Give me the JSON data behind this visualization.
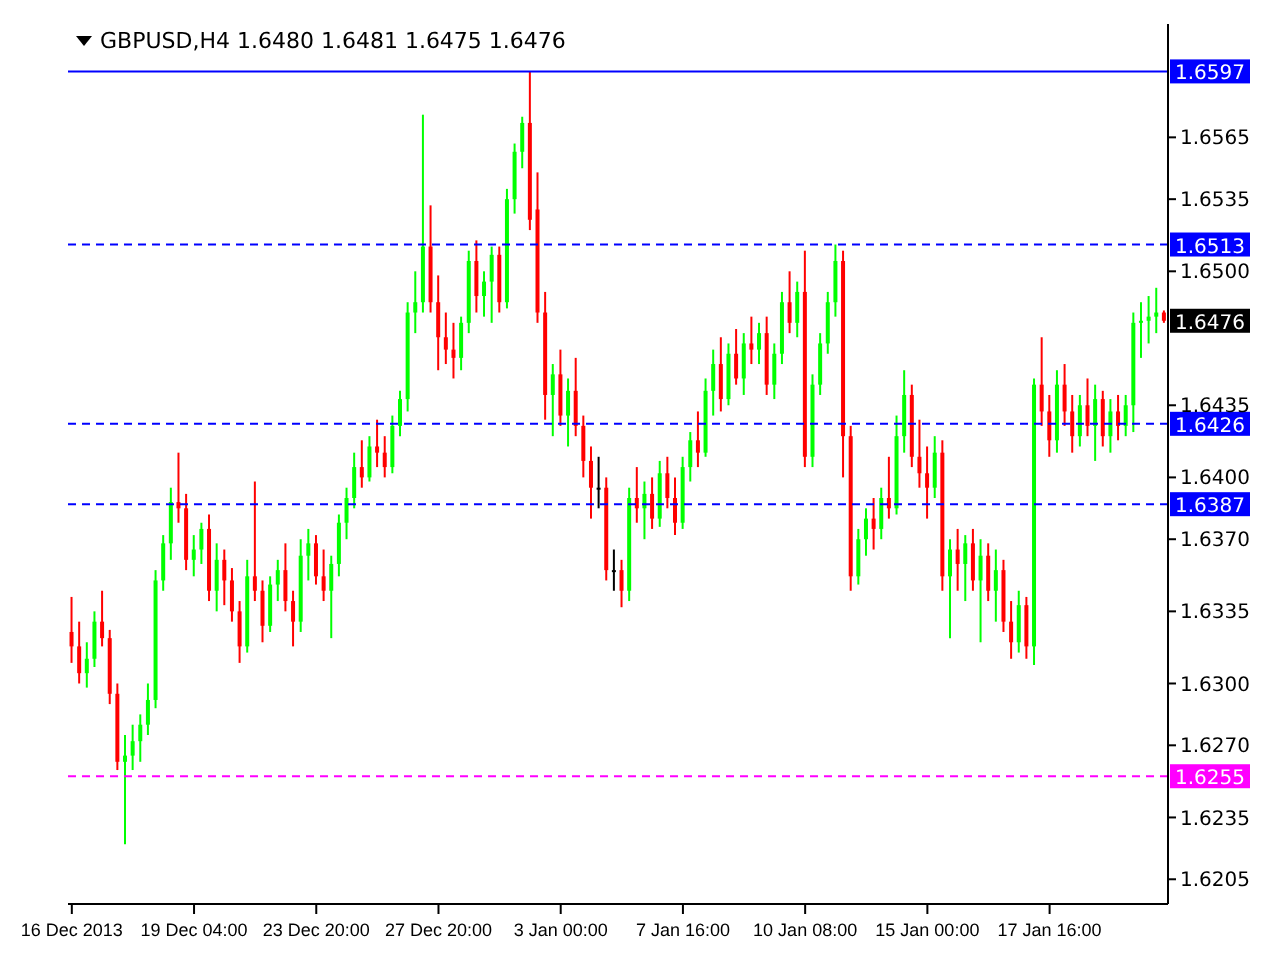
{
  "chart_data": {
    "type": "candlestick",
    "title": "GBPUSD,H4 1.6480 1.6481 1.6475 1.6476",
    "categories": [
      "16 Dec 2013",
      null,
      null,
      null,
      null,
      null,
      null,
      null,
      null,
      null,
      null,
      null,
      null,
      null,
      null,
      null,
      "19 Dec 04:00",
      null,
      null,
      null,
      null,
      null,
      null,
      null,
      null,
      null,
      null,
      null,
      null,
      null,
      null,
      null,
      "23 Dec 20:00",
      null,
      null,
      null,
      null,
      null,
      null,
      null,
      null,
      null,
      null,
      null,
      null,
      null,
      null,
      null,
      "27 Dec 20:00",
      null,
      null,
      null,
      null,
      null,
      null,
      null,
      null,
      null,
      null,
      null,
      null,
      null,
      null,
      null,
      "3 Jan 00:00",
      null,
      null,
      null,
      null,
      null,
      null,
      null,
      null,
      null,
      null,
      null,
      null,
      null,
      null,
      null,
      "7 Jan 16:00",
      null,
      null,
      null,
      null,
      null,
      null,
      null,
      null,
      null,
      null,
      null,
      null,
      null,
      null,
      null,
      "10 Jan 08:00",
      null,
      null,
      null,
      null,
      null,
      null,
      null,
      null,
      null,
      null,
      null,
      null,
      null,
      null,
      null,
      "15 Jan 00:00",
      null,
      null,
      null,
      null,
      null,
      null,
      null,
      null,
      null,
      null,
      null,
      null,
      null,
      null,
      null,
      "17 Jan 16:00",
      null,
      null,
      null,
      null,
      null,
      null,
      null,
      null,
      null,
      null,
      null,
      null,
      null,
      null,
      null
    ],
    "ohlc": [
      [
        1.6325,
        1.6342,
        1.631,
        1.6318
      ],
      [
        1.6318,
        1.633,
        1.63,
        1.6305
      ],
      [
        1.6305,
        1.632,
        1.6298,
        1.6312
      ],
      [
        1.6312,
        1.6335,
        1.6308,
        1.633
      ],
      [
        1.633,
        1.6345,
        1.6318,
        1.6322
      ],
      [
        1.6322,
        1.6326,
        1.629,
        1.6295
      ],
      [
        1.6295,
        1.63,
        1.6258,
        1.6262
      ],
      [
        1.6262,
        1.6275,
        1.6222,
        1.6265
      ],
      [
        1.6265,
        1.628,
        1.6258,
        1.6272
      ],
      [
        1.6272,
        1.6285,
        1.6262,
        1.628
      ],
      [
        1.628,
        1.63,
        1.6275,
        1.6292
      ],
      [
        1.6292,
        1.6355,
        1.6288,
        1.635
      ],
      [
        1.635,
        1.6372,
        1.6345,
        1.6368
      ],
      [
        1.6368,
        1.6395,
        1.636,
        1.6388
      ],
      [
        1.6388,
        1.6412,
        1.6378,
        1.6385
      ],
      [
        1.6385,
        1.6392,
        1.6355,
        1.636
      ],
      [
        1.636,
        1.6372,
        1.6352,
        1.6365
      ],
      [
        1.6365,
        1.6378,
        1.6358,
        1.6375
      ],
      [
        1.6375,
        1.6382,
        1.634,
        1.6345
      ],
      [
        1.6345,
        1.6368,
        1.6335,
        1.636
      ],
      [
        1.636,
        1.6365,
        1.6338,
        1.635
      ],
      [
        1.635,
        1.6356,
        1.633,
        1.6335
      ],
      [
        1.6335,
        1.634,
        1.631,
        1.6318
      ],
      [
        1.6318,
        1.636,
        1.6315,
        1.6352
      ],
      [
        1.6352,
        1.6398,
        1.634,
        1.6345
      ],
      [
        1.6345,
        1.635,
        1.632,
        1.6328
      ],
      [
        1.6328,
        1.6352,
        1.6325,
        1.6348
      ],
      [
        1.6348,
        1.636,
        1.634,
        1.6355
      ],
      [
        1.6355,
        1.6368,
        1.6335,
        1.634
      ],
      [
        1.634,
        1.6345,
        1.6318,
        1.633
      ],
      [
        1.633,
        1.637,
        1.6325,
        1.6362
      ],
      [
        1.6362,
        1.6375,
        1.635,
        1.6368
      ],
      [
        1.6368,
        1.6372,
        1.6348,
        1.6352
      ],
      [
        1.6352,
        1.6365,
        1.634,
        1.6345
      ],
      [
        1.6345,
        1.6362,
        1.6322,
        1.6358
      ],
      [
        1.6358,
        1.6382,
        1.6352,
        1.6378
      ],
      [
        1.6378,
        1.6395,
        1.637,
        1.639
      ],
      [
        1.639,
        1.6412,
        1.6385,
        1.6405
      ],
      [
        1.6405,
        1.6418,
        1.6395,
        1.64
      ],
      [
        1.64,
        1.642,
        1.6398,
        1.6415
      ],
      [
        1.6415,
        1.6428,
        1.6405,
        1.6412
      ],
      [
        1.6412,
        1.642,
        1.64,
        1.6405
      ],
      [
        1.6405,
        1.643,
        1.6402,
        1.6425
      ],
      [
        1.6425,
        1.6442,
        1.642,
        1.6438
      ],
      [
        1.6438,
        1.6485,
        1.6432,
        1.648
      ],
      [
        1.648,
        1.65,
        1.647,
        1.6485
      ],
      [
        1.6485,
        1.6576,
        1.648,
        1.6512
      ],
      [
        1.6512,
        1.6532,
        1.648,
        1.6485
      ],
      [
        1.6485,
        1.6498,
        1.6452,
        1.6468
      ],
      [
        1.6468,
        1.648,
        1.6455,
        1.6462
      ],
      [
        1.6462,
        1.6475,
        1.6448,
        1.6458
      ],
      [
        1.6458,
        1.6478,
        1.6452,
        1.6475
      ],
      [
        1.6475,
        1.651,
        1.647,
        1.6505
      ],
      [
        1.6505,
        1.6515,
        1.648,
        1.6488
      ],
      [
        1.6488,
        1.65,
        1.6478,
        1.6495
      ],
      [
        1.6495,
        1.6512,
        1.6475,
        1.6508
      ],
      [
        1.6508,
        1.6512,
        1.648,
        1.6485
      ],
      [
        1.6485,
        1.654,
        1.6482,
        1.6535
      ],
      [
        1.6535,
        1.6562,
        1.6528,
        1.6558
      ],
      [
        1.6558,
        1.6575,
        1.655,
        1.6572
      ],
      [
        1.6572,
        1.6597,
        1.652,
        1.6525
      ],
      [
        1.653,
        1.6548,
        1.6475,
        1.648
      ],
      [
        1.648,
        1.649,
        1.6428,
        1.644
      ],
      [
        1.644,
        1.6455,
        1.642,
        1.645
      ],
      [
        1.645,
        1.6462,
        1.6425,
        1.643
      ],
      [
        1.643,
        1.6448,
        1.6415,
        1.6442
      ],
      [
        1.6442,
        1.6458,
        1.642,
        1.6425
      ],
      [
        1.6425,
        1.643,
        1.64,
        1.6408
      ],
      [
        1.6408,
        1.6415,
        1.638,
        1.6395
      ],
      [
        1.6395,
        1.641,
        1.6385,
        1.6395
      ],
      [
        1.6395,
        1.64,
        1.635,
        1.6355
      ],
      [
        1.6355,
        1.6365,
        1.6345,
        1.6355
      ],
      [
        1.6355,
        1.636,
        1.6337,
        1.6345
      ],
      [
        1.6345,
        1.6395,
        1.634,
        1.639
      ],
      [
        1.639,
        1.6405,
        1.6378,
        1.6385
      ],
      [
        1.6385,
        1.6398,
        1.637,
        1.6392
      ],
      [
        1.6392,
        1.64,
        1.6375,
        1.638
      ],
      [
        1.638,
        1.6408,
        1.6376,
        1.6402
      ],
      [
        1.6402,
        1.641,
        1.6385,
        1.639
      ],
      [
        1.639,
        1.64,
        1.6372,
        1.6378
      ],
      [
        1.6378,
        1.641,
        1.6375,
        1.6405
      ],
      [
        1.6405,
        1.6422,
        1.6398,
        1.6418
      ],
      [
        1.6418,
        1.6432,
        1.6405,
        1.6412
      ],
      [
        1.6412,
        1.6448,
        1.641,
        1.6442
      ],
      [
        1.6442,
        1.6462,
        1.643,
        1.6455
      ],
      [
        1.6455,
        1.6468,
        1.6432,
        1.6438
      ],
      [
        1.6438,
        1.6465,
        1.6435,
        1.646
      ],
      [
        1.646,
        1.6472,
        1.6445,
        1.6448
      ],
      [
        1.6448,
        1.647,
        1.644,
        1.6465
      ],
      [
        1.6465,
        1.6478,
        1.6455,
        1.6462
      ],
      [
        1.6462,
        1.6475,
        1.6455,
        1.647
      ],
      [
        1.647,
        1.6478,
        1.644,
        1.6445
      ],
      [
        1.6445,
        1.6465,
        1.6438,
        1.646
      ],
      [
        1.646,
        1.649,
        1.6455,
        1.6485
      ],
      [
        1.6485,
        1.65,
        1.647,
        1.6475
      ],
      [
        1.6475,
        1.6495,
        1.6468,
        1.649
      ],
      [
        1.649,
        1.651,
        1.6405,
        1.641
      ],
      [
        1.641,
        1.645,
        1.6405,
        1.6445
      ],
      [
        1.6445,
        1.647,
        1.644,
        1.6465
      ],
      [
        1.6465,
        1.649,
        1.646,
        1.6485
      ],
      [
        1.6485,
        1.6513,
        1.6478,
        1.6505
      ],
      [
        1.6505,
        1.651,
        1.64,
        1.642
      ],
      [
        1.642,
        1.6425,
        1.6345,
        1.6352
      ],
      [
        1.6352,
        1.6375,
        1.6348,
        1.637
      ],
      [
        1.637,
        1.6385,
        1.6362,
        1.638
      ],
      [
        1.638,
        1.639,
        1.6365,
        1.6375
      ],
      [
        1.6375,
        1.6395,
        1.637,
        1.639
      ],
      [
        1.639,
        1.641,
        1.638,
        1.6385
      ],
      [
        1.6385,
        1.643,
        1.6382,
        1.642
      ],
      [
        1.642,
        1.6452,
        1.6412,
        1.644
      ],
      [
        1.644,
        1.6445,
        1.6405,
        1.641
      ],
      [
        1.641,
        1.6428,
        1.6395,
        1.6402
      ],
      [
        1.6402,
        1.6415,
        1.638,
        1.6395
      ],
      [
        1.6395,
        1.642,
        1.639,
        1.6412
      ],
      [
        1.6412,
        1.6418,
        1.6345,
        1.6352
      ],
      [
        1.6352,
        1.637,
        1.6322,
        1.6365
      ],
      [
        1.6365,
        1.6375,
        1.6345,
        1.6358
      ],
      [
        1.6358,
        1.6372,
        1.634,
        1.6368
      ],
      [
        1.6368,
        1.6375,
        1.6345,
        1.635
      ],
      [
        1.635,
        1.637,
        1.632,
        1.6362
      ],
      [
        1.6362,
        1.6368,
        1.634,
        1.6345
      ],
      [
        1.6345,
        1.6365,
        1.633,
        1.6355
      ],
      [
        1.6355,
        1.636,
        1.6325,
        1.633
      ],
      [
        1.633,
        1.634,
        1.6312,
        1.632
      ],
      [
        1.632,
        1.6345,
        1.6315,
        1.6338
      ],
      [
        1.6338,
        1.6342,
        1.6312,
        1.6318
      ],
      [
        1.6318,
        1.6448,
        1.6309,
        1.6445
      ],
      [
        1.6445,
        1.6468,
        1.6425,
        1.6432
      ],
      [
        1.6432,
        1.644,
        1.641,
        1.6418
      ],
      [
        1.6418,
        1.6452,
        1.6412,
        1.6445
      ],
      [
        1.6445,
        1.6455,
        1.6425,
        1.6432
      ],
      [
        1.6432,
        1.644,
        1.6412,
        1.642
      ],
      [
        1.642,
        1.644,
        1.6415,
        1.6435
      ],
      [
        1.6435,
        1.6448,
        1.642,
        1.6425
      ],
      [
        1.6425,
        1.6445,
        1.6408,
        1.6438
      ],
      [
        1.6438,
        1.6442,
        1.6415,
        1.642
      ],
      [
        1.642,
        1.6438,
        1.6412,
        1.6432
      ],
      [
        1.6432,
        1.644,
        1.6418,
        1.6425
      ],
      [
        1.6425,
        1.644,
        1.642,
        1.6435
      ],
      [
        1.6435,
        1.648,
        1.6422,
        1.6475
      ],
      [
        1.6475,
        1.6485,
        1.6458,
        1.6476
      ],
      [
        1.6476,
        1.6488,
        1.6465,
        1.6478
      ],
      [
        1.6478,
        1.6492,
        1.647,
        1.648
      ],
      [
        1.648,
        1.6481,
        1.6475,
        1.6476
      ]
    ],
    "ylim": [
      1.6193,
      1.662
    ],
    "yticks": [
      1.6565,
      1.6535,
      {
        "value": 1.65,
        "label": "1.6500"
      },
      1.6435,
      {
        "value": 1.64,
        "label": "1.6400"
      },
      {
        "value": 1.637,
        "label": "1.6370"
      },
      1.6335,
      {
        "value": 1.63,
        "label": "1.6300"
      },
      {
        "value": 1.627,
        "label": "1.6270"
      },
      1.6235,
      1.6205
    ],
    "ref_lines": [
      {
        "axis": "y",
        "value": 1.6597,
        "label": "1.6597",
        "color": "#0000ff",
        "line_style": "solid"
      },
      {
        "axis": "y",
        "value": 1.6513,
        "label": "1.6513",
        "color": "#0000ff",
        "line_style": "dashed"
      },
      {
        "axis": "y",
        "value": 1.6426,
        "label": "1.6426",
        "color": "#0000ff",
        "line_style": "dashed"
      },
      {
        "axis": "y",
        "value": 1.6387,
        "label": "1.6387",
        "color": "#0000ff",
        "line_style": "dashed"
      },
      {
        "axis": "y",
        "value": 1.6255,
        "label": "1.6255",
        "color": "#ff00ff",
        "line_style": "dashed"
      }
    ],
    "annotations": [
      {
        "text": "1.6476",
        "y": 1.6476
      }
    ]
  }
}
